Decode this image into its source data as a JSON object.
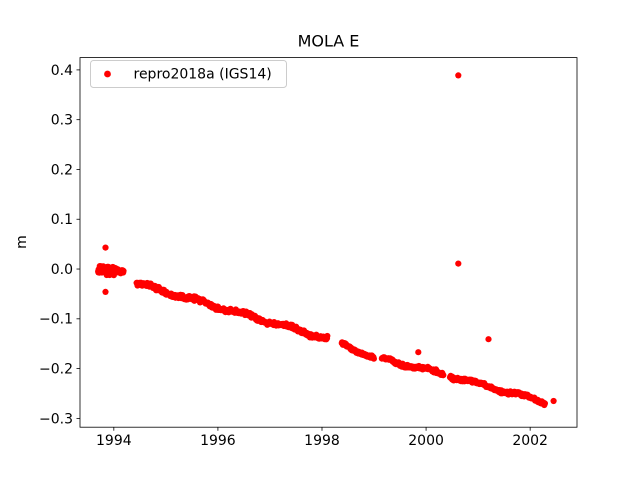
{
  "figure": {
    "title": "MOLA E",
    "background_color": "#ffffff"
  },
  "axes": {
    "ylabel": "m",
    "xticklabels": [
      "1994",
      "1996",
      "1998",
      "2000",
      "2002"
    ],
    "yticklabels": [
      "0.4",
      "0.3",
      "0.2",
      "0.1",
      "0.0",
      "−0.1",
      "−0.2",
      "−0.3"
    ]
  },
  "legend": {
    "label": "repro2018a (IGS14)",
    "marker_color": "#ff0000",
    "position": "upper left"
  },
  "chart_data": {
    "type": "scatter",
    "title": "MOLA E",
    "xlabel": "",
    "ylabel": "m",
    "series_name": "repro2018a (IGS14)",
    "marker_color": "#ff0000",
    "xlim": [
      1993.35,
      2002.9
    ],
    "ylim": [
      -0.3177,
      0.4247
    ],
    "xticks": [
      1994,
      1996,
      1998,
      2000,
      2002
    ],
    "yticks": [
      0.4,
      0.3,
      0.2,
      0.1,
      0.0,
      -0.1,
      -0.2,
      -0.3
    ],
    "grid": false,
    "legend_position": "upper left",
    "description": "GPS station MOLA, East component residual time series in metres. Dense daily solutions drift roughly linearly from ~0.00 m in late 1993 to ~-0.27 m by mid-2002 (about -0.03 m/yr), with data gaps near 1994.2-1994.4, 1998.1-1998.4, 1999.0-1999.15, 2000.33-2000.46 and a few isolated outliers.",
    "trend_segments": [
      {
        "x_start": 1993.7,
        "x_end": 1994.04,
        "y_start": 0.0,
        "y_end": -0.004,
        "points_per_year": 300,
        "jitter": 0.011,
        "wiggle_amp": 0.0,
        "wiggle_freq": 0.0
      },
      {
        "x_start": 1994.04,
        "x_end": 1994.19,
        "y_start": -0.003,
        "y_end": -0.005,
        "points_per_year": 150,
        "jitter": 0.005,
        "wiggle_amp": 0.0,
        "wiggle_freq": 0.0
      },
      {
        "x_start": 1994.44,
        "x_end": 1998.1,
        "y_start": -0.029,
        "y_end": -0.14,
        "points_per_year": 110,
        "jitter": 0.005,
        "wiggle_amp": 0.0035,
        "wiggle_freq": 7.0
      },
      {
        "x_start": 1998.38,
        "x_end": 1999.0,
        "y_start": -0.15,
        "y_end": -0.178,
        "points_per_year": 110,
        "jitter": 0.004,
        "wiggle_amp": 0.003,
        "wiggle_freq": 7.0
      },
      {
        "x_start": 1999.15,
        "x_end": 2000.33,
        "y_start": -0.18,
        "y_end": -0.211,
        "points_per_year": 110,
        "jitter": 0.004,
        "wiggle_amp": 0.003,
        "wiggle_freq": 7.0
      },
      {
        "x_start": 2000.46,
        "x_end": 2002.28,
        "y_start": -0.215,
        "y_end": -0.267,
        "points_per_year": 110,
        "jitter": 0.004,
        "wiggle_amp": 0.003,
        "wiggle_freq": 7.0
      }
    ],
    "outliers": [
      {
        "x": 1993.84,
        "y": 0.043
      },
      {
        "x": 1993.84,
        "y": -0.046
      },
      {
        "x": 1999.85,
        "y": -0.167
      },
      {
        "x": 2000.62,
        "y": 0.389
      },
      {
        "x": 2000.62,
        "y": 0.011
      },
      {
        "x": 2001.2,
        "y": -0.141
      },
      {
        "x": 2002.45,
        "y": -0.265
      }
    ]
  }
}
